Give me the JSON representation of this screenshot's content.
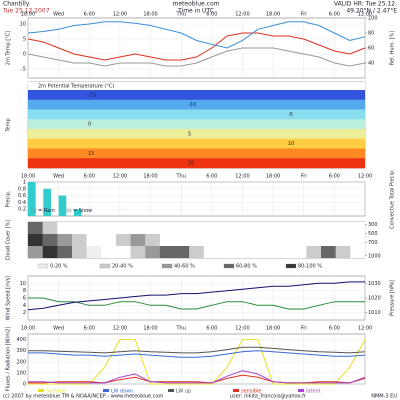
{
  "header": {
    "location": "Chantilly",
    "date": "Tue 25.12.2007",
    "site": "meteoblue.com",
    "timezone": "Time in UTC",
    "valid": "VALID HR: Tue 25.12.",
    "coords": "49.20°N / 2.47°E"
  },
  "time_labels": [
    "18:00",
    "Wed",
    "6:00",
    "12:00",
    "18:00",
    "Thu",
    "6:00",
    "12:00",
    "18:00",
    "Fri",
    "6:00",
    "12:00"
  ],
  "chart_data": [
    {
      "type": "line",
      "ylabel": "2m Temp [°C]",
      "y2label": "Rel. Hum. [%]",
      "ylim": [
        -8,
        12
      ],
      "yticks": [
        -5,
        0,
        5,
        10
      ],
      "y2lim": [
        20,
        100
      ],
      "y2ticks": [
        40,
        60,
        80,
        100
      ],
      "series": [
        {
          "color": "#e03020",
          "values": [
            5,
            4,
            2,
            0,
            -1,
            -2,
            -1,
            0,
            -1,
            -2,
            -2,
            -1,
            2,
            6,
            7,
            7,
            6,
            6,
            5,
            3,
            1,
            0,
            2
          ]
        },
        {
          "color": "#999999",
          "values": [
            0,
            -1,
            -2,
            -3,
            -3,
            -4,
            -3,
            -3,
            -3,
            -4,
            -4,
            -3,
            -1,
            1,
            2,
            2,
            2,
            1,
            0,
            -1,
            -3,
            -4,
            -3
          ]
        },
        {
          "color": "#3a8fd8",
          "axis": "y2",
          "values": [
            80,
            82,
            85,
            90,
            92,
            95,
            95,
            93,
            90,
            85,
            80,
            70,
            65,
            60,
            70,
            85,
            90,
            95,
            95,
            90,
            80,
            70,
            75
          ]
        }
      ]
    },
    {
      "type": "bands",
      "title": "2m Potential Temperature (°C)",
      "ylabel": "Temp",
      "levels": [
        {
          "value": -15,
          "color": "#3355dd"
        },
        {
          "value": -10,
          "color": "#55aaee"
        },
        {
          "value": -5,
          "color": "#88ddee"
        },
        {
          "value": 0,
          "color": "#bbeedd"
        },
        {
          "value": 5,
          "color": "#eeee99"
        },
        {
          "value": 10,
          "color": "#ffcc44"
        },
        {
          "value": 15,
          "color": "#ff8822"
        },
        {
          "value": 20,
          "color": "#ee3311"
        }
      ]
    },
    {
      "type": "bar",
      "ylabel": "Precip.",
      "y2label": "Convective Total Precip.",
      "ylim": [
        0,
        1
      ],
      "yticks": [
        0.2,
        0.4,
        0.6,
        0.8,
        1
      ],
      "series": [
        {
          "name": "= Rain",
          "color": "#33cccc",
          "values": [
            1,
            0.8,
            0.6,
            0.2,
            0,
            0,
            0,
            0,
            0,
            0,
            0,
            0,
            0,
            0,
            0,
            0,
            0,
            0,
            0,
            0,
            0,
            0,
            0
          ]
        },
        {
          "name": "= Snow",
          "color": "#dddddd",
          "values": [
            0,
            0,
            0,
            0,
            0,
            0,
            0,
            0,
            0,
            0,
            0,
            0,
            0,
            0,
            0,
            0,
            0,
            0,
            0,
            0,
            0,
            0,
            0
          ]
        }
      ]
    },
    {
      "type": "cloud",
      "ylabel": "Cloud Cover [%]",
      "y2lim": [
        1050,
        250
      ],
      "y2ticks": [
        300,
        500,
        700,
        1000
      ],
      "classes": [
        {
          "label": "0-20 %",
          "color": "#eeeeee"
        },
        {
          "label": "20-40 %",
          "color": "#cccccc"
        },
        {
          "label": "40-60 %",
          "color": "#999999"
        },
        {
          "label": "60-80 %",
          "color": "#666666"
        },
        {
          "label": "80-100 %",
          "color": "#333333"
        }
      ],
      "rows": [
        [
          60,
          30,
          0,
          0,
          0,
          0,
          0,
          0,
          0,
          0,
          0,
          0,
          0,
          0,
          0,
          0,
          0,
          0,
          0,
          0,
          0,
          0,
          0
        ],
        [
          90,
          70,
          40,
          20,
          0,
          0,
          30,
          50,
          20,
          0,
          0,
          0,
          0,
          0,
          0,
          0,
          0,
          0,
          0,
          0,
          0,
          0,
          0
        ],
        [
          50,
          80,
          60,
          30,
          10,
          0,
          0,
          20,
          40,
          70,
          60,
          30,
          0,
          0,
          0,
          0,
          0,
          0,
          0,
          20,
          60,
          30,
          0
        ]
      ]
    },
    {
      "type": "line",
      "ylabel": "Wind Speed [m/s]",
      "y2label": "Pressure [hPa]",
      "ylim": [
        0,
        12
      ],
      "yticks": [
        2,
        4,
        6,
        8,
        10
      ],
      "y2lim": [
        1005,
        1035
      ],
      "y2ticks": [
        1010,
        1020,
        1030
      ],
      "series": [
        {
          "color": "#2a8a3a",
          "values": [
            6,
            6,
            5,
            5,
            4,
            4,
            5,
            5,
            4,
            4,
            3,
            3,
            4,
            5,
            5,
            4,
            4,
            3,
            3,
            4,
            5,
            5,
            5
          ]
        },
        {
          "color": "#101070",
          "axis": "y2",
          "values": [
            1012,
            1013,
            1015,
            1017,
            1018,
            1019,
            1020,
            1021,
            1022,
            1022,
            1023,
            1023,
            1024,
            1025,
            1026,
            1027,
            1028,
            1028,
            1029,
            1030,
            1030,
            1031,
            1031
          ]
        }
      ]
    },
    {
      "type": "line",
      "ylabel": "Fluxes / Radiation [W/m2]",
      "ylim": [
        0,
        450
      ],
      "yticks": [
        0,
        100,
        200,
        300,
        400
      ],
      "series": [
        {
          "name": "Surface",
          "color": "#e8e020",
          "values": [
            0,
            0,
            0,
            0,
            0,
            150,
            400,
            400,
            0,
            0,
            0,
            0,
            0,
            150,
            400,
            400,
            0,
            0,
            0,
            0,
            0,
            150,
            400
          ]
        },
        {
          "name": "LW down",
          "color": "#3a6ad8",
          "values": [
            280,
            280,
            270,
            260,
            260,
            250,
            260,
            270,
            260,
            250,
            240,
            240,
            250,
            270,
            290,
            300,
            290,
            280,
            270,
            260,
            250,
            250,
            260
          ]
        },
        {
          "name": "LW up",
          "color": "#555555",
          "values": [
            300,
            300,
            295,
            290,
            285,
            280,
            290,
            300,
            290,
            285,
            280,
            280,
            290,
            310,
            330,
            330,
            320,
            310,
            300,
            290,
            285,
            280,
            290
          ]
        },
        {
          "name": "sensible",
          "color": "#e03020",
          "values": [
            10,
            10,
            20,
            20,
            20,
            10,
            40,
            60,
            20,
            20,
            20,
            20,
            10,
            50,
            80,
            60,
            20,
            10,
            10,
            20,
            20,
            10,
            50
          ]
        },
        {
          "name": "latent",
          "color": "#aa44cc",
          "values": [
            20,
            20,
            10,
            10,
            10,
            10,
            60,
            90,
            20,
            10,
            10,
            10,
            10,
            70,
            120,
            90,
            20,
            10,
            10,
            10,
            10,
            10,
            60
          ]
        }
      ]
    }
  ],
  "footer": {
    "copyright": "(c) 2007 by meteoblue TM & NOAA/NCEP - www.meteoblue.com",
    "user": "user: nikita_francois@yahoo.fr",
    "model": "NMM-3 EU"
  }
}
